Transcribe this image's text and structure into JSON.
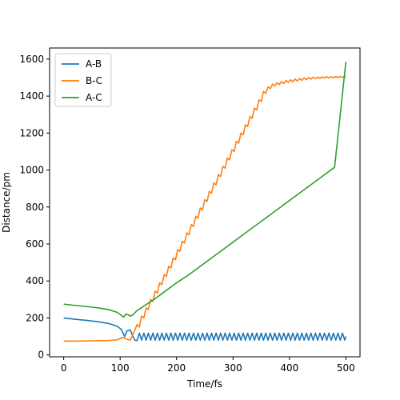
{
  "chart_data": {
    "type": "line",
    "title": "",
    "xlabel": "Time/fs",
    "ylabel": "Distance/pm",
    "xlim": [
      -25,
      525
    ],
    "ylim": [
      -10,
      1660
    ],
    "xticks": [
      0,
      100,
      200,
      300,
      400,
      500
    ],
    "yticks": [
      0,
      200,
      400,
      600,
      800,
      1000,
      1200,
      1400,
      1600
    ],
    "legend_position": "top-left",
    "grid": false,
    "series": [
      {
        "name": "A-B",
        "color": "#1f77b4",
        "points": [
          [
            0,
            200
          ],
          [
            20,
            193
          ],
          [
            40,
            187
          ],
          [
            60,
            180
          ],
          [
            80,
            170
          ],
          [
            95,
            155
          ],
          [
            102,
            138
          ],
          [
            108,
            100
          ],
          [
            112,
            130
          ],
          [
            118,
            135
          ],
          [
            122,
            105
          ],
          [
            126,
            80
          ],
          [
            130,
            78
          ],
          [
            134,
            118
          ],
          [
            138,
            80
          ],
          [
            142,
            118
          ],
          [
            146,
            80
          ],
          [
            150,
            118
          ],
          [
            154,
            80
          ],
          [
            158,
            118
          ],
          [
            162,
            80
          ],
          [
            166,
            118
          ],
          [
            170,
            80
          ],
          [
            174,
            118
          ],
          [
            178,
            80
          ],
          [
            182,
            118
          ],
          [
            186,
            80
          ],
          [
            190,
            118
          ],
          [
            194,
            80
          ],
          [
            198,
            118
          ],
          [
            202,
            80
          ],
          [
            206,
            118
          ],
          [
            210,
            80
          ],
          [
            214,
            118
          ],
          [
            218,
            80
          ],
          [
            222,
            118
          ],
          [
            226,
            80
          ],
          [
            230,
            118
          ],
          [
            234,
            80
          ],
          [
            238,
            118
          ],
          [
            242,
            80
          ],
          [
            246,
            118
          ],
          [
            250,
            80
          ],
          [
            254,
            118
          ],
          [
            258,
            80
          ],
          [
            262,
            118
          ],
          [
            266,
            80
          ],
          [
            270,
            118
          ],
          [
            274,
            80
          ],
          [
            278,
            118
          ],
          [
            282,
            80
          ],
          [
            286,
            118
          ],
          [
            290,
            80
          ],
          [
            294,
            118
          ],
          [
            298,
            80
          ],
          [
            302,
            118
          ],
          [
            306,
            80
          ],
          [
            310,
            118
          ],
          [
            314,
            80
          ],
          [
            318,
            118
          ],
          [
            322,
            80
          ],
          [
            326,
            118
          ],
          [
            330,
            80
          ],
          [
            334,
            118
          ],
          [
            338,
            80
          ],
          [
            342,
            118
          ],
          [
            346,
            80
          ],
          [
            350,
            118
          ],
          [
            354,
            80
          ],
          [
            358,
            118
          ],
          [
            362,
            80
          ],
          [
            366,
            118
          ],
          [
            370,
            80
          ],
          [
            374,
            118
          ],
          [
            378,
            80
          ],
          [
            382,
            118
          ],
          [
            386,
            80
          ],
          [
            390,
            118
          ],
          [
            394,
            80
          ],
          [
            398,
            118
          ],
          [
            402,
            80
          ],
          [
            406,
            118
          ],
          [
            410,
            80
          ],
          [
            414,
            118
          ],
          [
            418,
            80
          ],
          [
            422,
            118
          ],
          [
            426,
            80
          ],
          [
            430,
            118
          ],
          [
            434,
            80
          ],
          [
            438,
            118
          ],
          [
            442,
            80
          ],
          [
            446,
            118
          ],
          [
            450,
            80
          ],
          [
            454,
            118
          ],
          [
            458,
            80
          ],
          [
            462,
            118
          ],
          [
            466,
            80
          ],
          [
            470,
            118
          ],
          [
            474,
            80
          ],
          [
            478,
            118
          ],
          [
            482,
            80
          ],
          [
            486,
            118
          ],
          [
            490,
            80
          ],
          [
            494,
            118
          ],
          [
            498,
            80
          ],
          [
            500,
            100
          ]
        ]
      },
      {
        "name": "B-C",
        "color": "#ff7f0e",
        "points": [
          [
            0,
            75
          ],
          [
            20,
            75
          ],
          [
            40,
            76
          ],
          [
            60,
            77
          ],
          [
            80,
            78
          ],
          [
            95,
            82
          ],
          [
            105,
            95
          ],
          [
            112,
            85
          ],
          [
            118,
            80
          ],
          [
            124,
            120
          ],
          [
            130,
            165
          ],
          [
            134,
            150
          ],
          [
            138,
            210
          ],
          [
            142,
            200
          ],
          [
            146,
            255
          ],
          [
            150,
            245
          ],
          [
            154,
            300
          ],
          [
            158,
            290
          ],
          [
            162,
            345
          ],
          [
            166,
            335
          ],
          [
            170,
            390
          ],
          [
            174,
            380
          ],
          [
            178,
            435
          ],
          [
            182,
            425
          ],
          [
            186,
            480
          ],
          [
            190,
            470
          ],
          [
            194,
            525
          ],
          [
            198,
            515
          ],
          [
            202,
            570
          ],
          [
            206,
            560
          ],
          [
            210,
            615
          ],
          [
            214,
            605
          ],
          [
            218,
            660
          ],
          [
            222,
            650
          ],
          [
            226,
            705
          ],
          [
            230,
            695
          ],
          [
            234,
            750
          ],
          [
            238,
            740
          ],
          [
            242,
            795
          ],
          [
            246,
            785
          ],
          [
            250,
            840
          ],
          [
            254,
            830
          ],
          [
            258,
            885
          ],
          [
            262,
            875
          ],
          [
            266,
            930
          ],
          [
            270,
            920
          ],
          [
            274,
            975
          ],
          [
            278,
            965
          ],
          [
            282,
            1020
          ],
          [
            286,
            1010
          ],
          [
            290,
            1065
          ],
          [
            294,
            1055
          ],
          [
            298,
            1110
          ],
          [
            302,
            1100
          ],
          [
            306,
            1155
          ],
          [
            310,
            1145
          ],
          [
            314,
            1200
          ],
          [
            318,
            1190
          ],
          [
            322,
            1245
          ],
          [
            326,
            1235
          ],
          [
            330,
            1290
          ],
          [
            334,
            1280
          ],
          [
            338,
            1335
          ],
          [
            342,
            1325
          ],
          [
            346,
            1380
          ],
          [
            350,
            1370
          ],
          [
            354,
            1425
          ],
          [
            358,
            1415
          ],
          [
            362,
            1450
          ],
          [
            366,
            1440
          ],
          [
            370,
            1465
          ],
          [
            374,
            1455
          ],
          [
            378,
            1472
          ],
          [
            382,
            1462
          ],
          [
            386,
            1478
          ],
          [
            390,
            1468
          ],
          [
            394,
            1484
          ],
          [
            398,
            1474
          ],
          [
            402,
            1488
          ],
          [
            406,
            1478
          ],
          [
            410,
            1492
          ],
          [
            414,
            1482
          ],
          [
            418,
            1495
          ],
          [
            422,
            1485
          ],
          [
            426,
            1498
          ],
          [
            430,
            1488
          ],
          [
            434,
            1500
          ],
          [
            438,
            1492
          ],
          [
            442,
            1502
          ],
          [
            446,
            1494
          ],
          [
            450,
            1503
          ],
          [
            454,
            1496
          ],
          [
            458,
            1504
          ],
          [
            462,
            1497
          ],
          [
            466,
            1505
          ],
          [
            470,
            1498
          ],
          [
            474,
            1505
          ],
          [
            478,
            1499
          ],
          [
            482,
            1506
          ],
          [
            486,
            1500
          ],
          [
            490,
            1506
          ],
          [
            494,
            1501
          ],
          [
            498,
            1507
          ],
          [
            500,
            1505
          ]
        ]
      },
      {
        "name": "A-C",
        "color": "#2ca02c",
        "points": [
          [
            0,
            275
          ],
          [
            20,
            268
          ],
          [
            40,
            262
          ],
          [
            60,
            255
          ],
          [
            80,
            245
          ],
          [
            95,
            230
          ],
          [
            102,
            215
          ],
          [
            106,
            205
          ],
          [
            110,
            220
          ],
          [
            114,
            218
          ],
          [
            118,
            210
          ],
          [
            122,
            215
          ],
          [
            126,
            228
          ],
          [
            130,
            240
          ],
          [
            140,
            260
          ],
          [
            160,
            300
          ],
          [
            180,
            345
          ],
          [
            200,
            390
          ],
          [
            220,
            430
          ],
          [
            240,
            475
          ],
          [
            260,
            520
          ],
          [
            280,
            565
          ],
          [
            300,
            610
          ],
          [
            320,
            655
          ],
          [
            340,
            700
          ],
          [
            360,
            745
          ],
          [
            380,
            790
          ],
          [
            400,
            835
          ],
          [
            420,
            880
          ],
          [
            440,
            925
          ],
          [
            460,
            970
          ],
          [
            480,
            1015
          ],
          [
            500,
            1585
          ]
        ]
      }
    ]
  }
}
